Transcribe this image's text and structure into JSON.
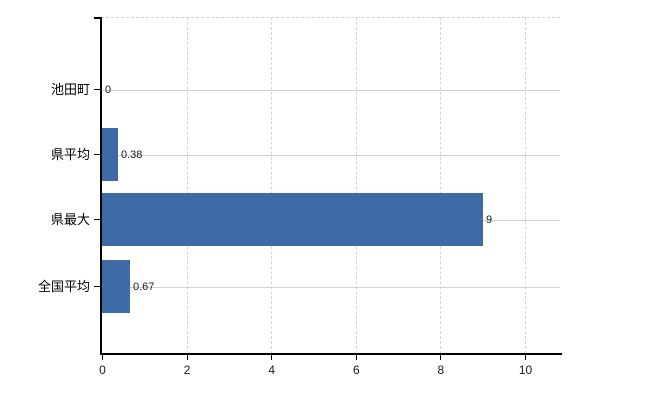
{
  "chart_data": {
    "type": "bar",
    "orientation": "horizontal",
    "title": "",
    "xlabel": "",
    "ylabel": "",
    "categories": [
      "池田町",
      "県平均",
      "県最大",
      "全国平均"
    ],
    "values": [
      0,
      0.38,
      9,
      0.67
    ],
    "value_labels": [
      "0",
      "0.38",
      "9",
      "0.67"
    ],
    "x_ticks": [
      0,
      2,
      4,
      6,
      8,
      10
    ],
    "x_tick_labels": [
      "0",
      "2",
      "4",
      "6",
      "8",
      "10"
    ],
    "xlim": [
      0,
      10.9
    ],
    "legend": "none",
    "grid": "horizontal-solid, vertical-dashed",
    "colors": {
      "bar": "#3c6ba6",
      "axis": "#000000",
      "grid_horizontal": "#ccd6cc",
      "grid_vertical": "#d8d2d8",
      "text": "#1a1a1a",
      "background": "#ffffff"
    }
  }
}
